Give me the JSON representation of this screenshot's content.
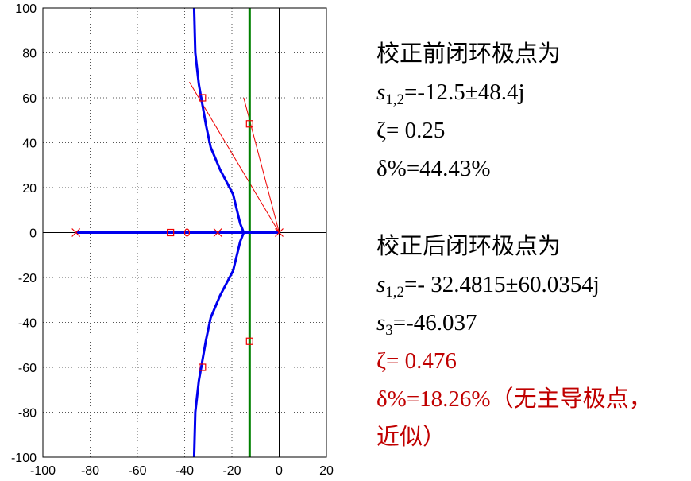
{
  "chart_data": {
    "type": "scatter",
    "title": "",
    "xlabel": "",
    "ylabel": "",
    "xlim": [
      -100,
      20
    ],
    "ylim": [
      -100,
      100
    ],
    "x_ticks": [
      "-100",
      "-80",
      "-60",
      "-40",
      "-20",
      "0",
      "20"
    ],
    "y_ticks": [
      "100",
      "80",
      "60",
      "40",
      "20",
      "0",
      "-20",
      "-40",
      "-60",
      "-80",
      "-100"
    ],
    "grid": true,
    "series": [
      {
        "kind": "root-locus-branch-upper",
        "color": "#0000ee",
        "x": [
          -36,
          -35.5,
          -34,
          -31,
          -29,
          -25,
          -19.5,
          -16.5,
          -15
        ],
        "y": [
          100,
          80,
          66,
          48,
          38,
          28,
          17,
          4,
          0
        ]
      },
      {
        "kind": "root-locus-branch-lower",
        "color": "#0000ee",
        "x": [
          -15,
          -16.5,
          -19.5,
          -25,
          -29,
          -31,
          -34,
          -35.5,
          -36
        ],
        "y": [
          0,
          -4,
          -17,
          -28,
          -38,
          -48,
          -66,
          -80,
          -100
        ]
      },
      {
        "kind": "real-axis-locus",
        "color": "#0000ee",
        "x": [
          -86,
          0
        ],
        "y": [
          0,
          0
        ]
      },
      {
        "kind": "reference-line",
        "color": "#008000",
        "x": [
          -12.5,
          -12.5
        ],
        "y": [
          -100,
          100
        ]
      },
      {
        "kind": "radial-line",
        "color": "#ee0000",
        "x": [
          0,
          -38
        ],
        "y": [
          0,
          67
        ]
      },
      {
        "kind": "radial-line",
        "color": "#ee0000",
        "x": [
          0,
          -15
        ],
        "y": [
          0,
          60
        ]
      },
      {
        "kind": "poles-x",
        "color": "#ee0000",
        "x": [
          -86,
          -26,
          0
        ],
        "y": [
          0,
          0,
          0
        ]
      },
      {
        "kind": "closed-loop-poles-square",
        "color": "#ee0000",
        "x": [
          -32.5,
          -32.5,
          -12.5,
          -12.5,
          -46
        ],
        "y": [
          60,
          -60,
          48.4,
          -48.4,
          0
        ]
      },
      {
        "kind": "zero-circle",
        "color": "#ee0000",
        "x": [
          -39
        ],
        "y": [
          0
        ]
      }
    ]
  },
  "notes": {
    "before_title": "校正前闭环极点为",
    "before_s_sym": "s",
    "before_s_sub": "1,2",
    "before_s_val": "=-12.5±48.4j",
    "before_zeta": "ζ= 0.25",
    "before_delta": "δ%=44.43%",
    "after_title": "校正后闭环极点为",
    "after_s_sym": "s",
    "after_s_sub": "1,2",
    "after_s_val": "=- 32.4815±60.0354j",
    "after_s3_sym": "s",
    "after_s3_sub": "3",
    "after_s3_val": "=-46.037",
    "after_zeta": "ζ= 0.476",
    "after_delta": "δ%=18.26%（无主导极点，",
    "after_delta_cont": "近似）"
  }
}
